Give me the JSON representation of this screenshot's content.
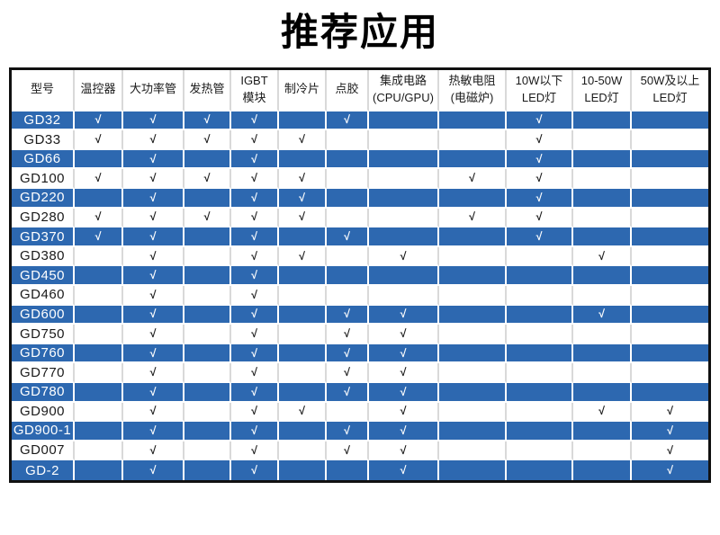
{
  "title": "推荐应用",
  "colors": {
    "row_blue": "#2d68b0",
    "table_border": "#111111",
    "grid_gray": "#d9d9d9",
    "text_dark": "#1a1a1a",
    "check_on_blue": "#ffffff"
  },
  "table": {
    "check_symbol": "√",
    "columns": [
      {
        "id": "model",
        "lines": [
          "型号"
        ]
      },
      {
        "id": "thermostat",
        "lines": [
          "温控器"
        ]
      },
      {
        "id": "high-power-tube",
        "lines": [
          "大功率管"
        ]
      },
      {
        "id": "heating-tube",
        "lines": [
          "发热管"
        ]
      },
      {
        "id": "igbt-module",
        "lines": [
          "IGBT",
          "模块"
        ]
      },
      {
        "id": "cooling-chip",
        "lines": [
          "制冷片"
        ]
      },
      {
        "id": "dispensing",
        "lines": [
          "点胶"
        ]
      },
      {
        "id": "integrated-circuit",
        "lines": [
          "集成电路",
          "(CPU/GPU)"
        ]
      },
      {
        "id": "thermistor",
        "lines": [
          "热敏电阻",
          "(电磁炉)"
        ]
      },
      {
        "id": "led-under-10w",
        "lines": [
          "10W以下",
          "LED灯"
        ]
      },
      {
        "id": "led-10-50w",
        "lines": [
          "10-50W",
          "LED灯"
        ]
      },
      {
        "id": "led-50w-above",
        "lines": [
          "50W及以上",
          "LED灯"
        ]
      }
    ],
    "rows": [
      {
        "model": "GD32",
        "checks": [
          1,
          1,
          1,
          1,
          0,
          1,
          0,
          0,
          1,
          0,
          0
        ]
      },
      {
        "model": "GD33",
        "checks": [
          1,
          1,
          1,
          1,
          1,
          0,
          0,
          0,
          1,
          0,
          0
        ]
      },
      {
        "model": "GD66",
        "checks": [
          0,
          1,
          0,
          1,
          0,
          0,
          0,
          0,
          1,
          0,
          0
        ]
      },
      {
        "model": "GD100",
        "checks": [
          1,
          1,
          1,
          1,
          1,
          0,
          0,
          1,
          1,
          0,
          0
        ]
      },
      {
        "model": "GD220",
        "checks": [
          0,
          1,
          0,
          1,
          1,
          0,
          0,
          0,
          1,
          0,
          0
        ]
      },
      {
        "model": "GD280",
        "checks": [
          1,
          1,
          1,
          1,
          1,
          0,
          0,
          1,
          1,
          0,
          0
        ]
      },
      {
        "model": "GD370",
        "checks": [
          1,
          1,
          0,
          1,
          0,
          1,
          0,
          0,
          1,
          0,
          0
        ]
      },
      {
        "model": "GD380",
        "checks": [
          0,
          1,
          0,
          1,
          1,
          0,
          1,
          0,
          0,
          1,
          0
        ]
      },
      {
        "model": "GD450",
        "checks": [
          0,
          1,
          0,
          1,
          0,
          0,
          0,
          0,
          0,
          0,
          0
        ]
      },
      {
        "model": "GD460",
        "checks": [
          0,
          1,
          0,
          1,
          0,
          0,
          0,
          0,
          0,
          0,
          0
        ]
      },
      {
        "model": "GD600",
        "checks": [
          0,
          1,
          0,
          1,
          0,
          1,
          1,
          0,
          0,
          1,
          0
        ]
      },
      {
        "model": "GD750",
        "checks": [
          0,
          1,
          0,
          1,
          0,
          1,
          1,
          0,
          0,
          0,
          0
        ]
      },
      {
        "model": "GD760",
        "checks": [
          0,
          1,
          0,
          1,
          0,
          1,
          1,
          0,
          0,
          0,
          0
        ]
      },
      {
        "model": "GD770",
        "checks": [
          0,
          1,
          0,
          1,
          0,
          1,
          1,
          0,
          0,
          0,
          0
        ]
      },
      {
        "model": "GD780",
        "checks": [
          0,
          1,
          0,
          1,
          0,
          1,
          1,
          0,
          0,
          0,
          0
        ]
      },
      {
        "model": "GD900",
        "checks": [
          0,
          1,
          0,
          1,
          1,
          0,
          1,
          0,
          0,
          1,
          1
        ]
      },
      {
        "model": "GD900-1",
        "checks": [
          0,
          1,
          0,
          1,
          0,
          1,
          1,
          0,
          0,
          0,
          1
        ]
      },
      {
        "model": "GD007",
        "checks": [
          0,
          1,
          0,
          1,
          0,
          1,
          1,
          0,
          0,
          0,
          1
        ]
      },
      {
        "model": "GD-2",
        "checks": [
          0,
          1,
          0,
          1,
          0,
          0,
          1,
          0,
          0,
          0,
          1
        ]
      }
    ]
  }
}
